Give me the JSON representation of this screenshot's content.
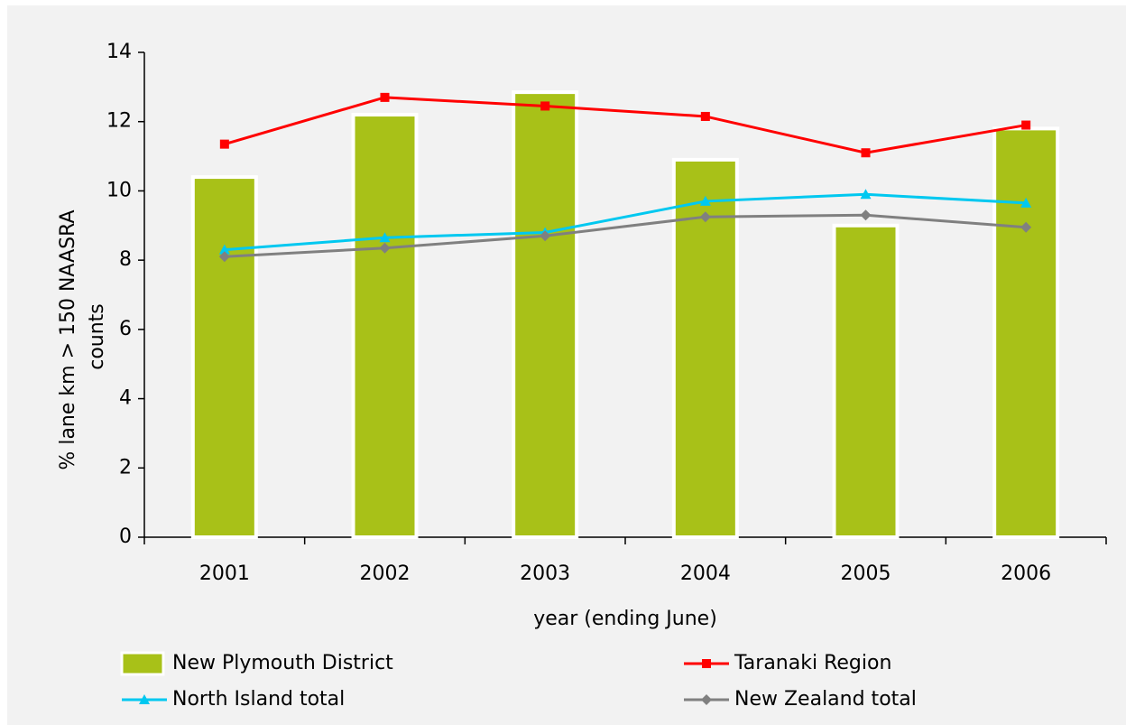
{
  "chart_data": {
    "type": "combo",
    "x_label": "year (ending June)",
    "y_label": [
      "% lane km > 150 NAASRA",
      "counts"
    ],
    "categories": [
      "2001",
      "2002",
      "2003",
      "2004",
      "2005",
      "2006"
    ],
    "ylim": [
      0,
      14
    ],
    "yticks": [
      0,
      2,
      4,
      6,
      8,
      10,
      12,
      14
    ],
    "series": [
      {
        "name": "New Plymouth District",
        "type": "bar",
        "color": "#a8c118",
        "values": [
          10.4,
          12.2,
          12.85,
          10.9,
          9.0,
          11.8
        ]
      },
      {
        "name": "Taranaki Region",
        "type": "line",
        "marker": "square",
        "color": "#ff0000",
        "values": [
          11.35,
          12.7,
          12.45,
          12.15,
          11.1,
          11.9
        ]
      },
      {
        "name": "North Island total",
        "type": "line",
        "marker": "triangle",
        "color": "#00c8f0",
        "values": [
          8.3,
          8.65,
          8.8,
          9.7,
          9.9,
          9.65
        ]
      },
      {
        "name": "New Zealand total",
        "type": "line",
        "marker": "diamond",
        "color": "#808080",
        "values": [
          8.1,
          8.35,
          8.7,
          9.25,
          9.3,
          8.95
        ]
      }
    ]
  }
}
